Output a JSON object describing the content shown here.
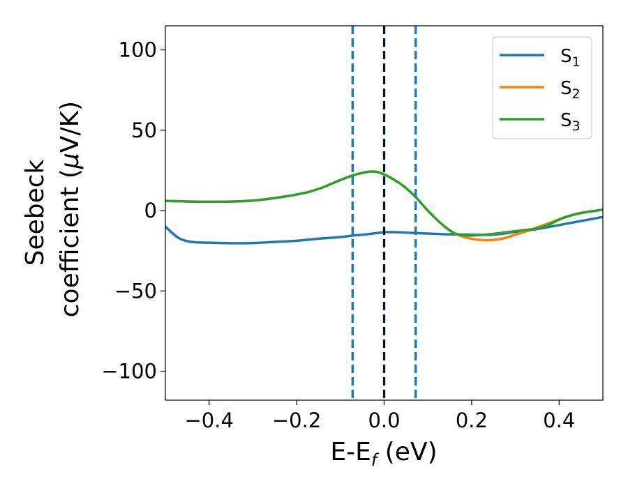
{
  "chart_data": {
    "type": "line",
    "title": "",
    "xlabel": {
      "main": "E-E",
      "sub": "f",
      "unit": " (eV)"
    },
    "ylabel": {
      "line1": "Seebeck",
      "line2": "coefficient  (",
      "mu": "μ",
      "unit": "V/K)"
    },
    "xlim": [
      -0.5,
      0.5
    ],
    "ylim": [
      -118,
      115
    ],
    "xticks": [
      -0.4,
      -0.2,
      0.0,
      0.2,
      0.4
    ],
    "xtick_labels": [
      "−0.4",
      "−0.2",
      "0.0",
      "0.2",
      "0.4"
    ],
    "yticks": [
      100,
      50,
      0,
      -50,
      -100
    ],
    "ytick_labels": [
      "100",
      "50",
      "0",
      "−50",
      "−100"
    ],
    "legend_position": "top-right",
    "series": [
      {
        "name": "S",
        "sub": "1",
        "color": "#1f77b4",
        "x": [
          -0.5,
          -0.47,
          -0.44,
          -0.4,
          -0.35,
          -0.3,
          -0.25,
          -0.2,
          -0.15,
          -0.1,
          -0.07,
          -0.04,
          0.0,
          0.03,
          0.07,
          0.1,
          0.15,
          0.2,
          0.25,
          0.3,
          0.35,
          0.4,
          0.45,
          0.5
        ],
        "y": [
          -10,
          -17,
          -19.5,
          -20,
          -20.3,
          -20.2,
          -19.5,
          -18.8,
          -17.5,
          -16.5,
          -15.5,
          -14.8,
          -13.5,
          -13.5,
          -14,
          -14.3,
          -14.8,
          -15,
          -15,
          -13.3,
          -11.5,
          -9,
          -6.5,
          -4
        ]
      },
      {
        "name": "S",
        "sub": "2",
        "color": "#ff7f0e",
        "x": [
          -0.5,
          -0.4,
          -0.3,
          -0.2,
          -0.15,
          -0.1,
          -0.07,
          -0.04,
          -0.02,
          0.0,
          0.03,
          0.05,
          0.07,
          0.1,
          0.13,
          0.16,
          0.19,
          0.22,
          0.24,
          0.27,
          0.3,
          0.33,
          0.35,
          0.38,
          0.41,
          0.45,
          0.5
        ],
        "y": [
          6,
          5.5,
          6.2,
          10,
          13.5,
          19,
          22,
          24,
          24.2,
          22.5,
          18,
          14,
          9,
          0,
          -8,
          -14,
          -17,
          -18.3,
          -18.5,
          -17.5,
          -15,
          -12.5,
          -10.5,
          -7.5,
          -4.5,
          -1.5,
          0.5
        ]
      },
      {
        "name": "S",
        "sub": "3",
        "color": "#2ca02c",
        "x": [
          -0.5,
          -0.4,
          -0.3,
          -0.2,
          -0.15,
          -0.1,
          -0.07,
          -0.04,
          -0.02,
          0.0,
          0.03,
          0.05,
          0.07,
          0.1,
          0.13,
          0.16,
          0.19,
          0.22,
          0.25,
          0.28,
          0.31,
          0.34,
          0.37,
          0.41,
          0.45,
          0.5
        ],
        "y": [
          6,
          5.5,
          6.2,
          10,
          13.5,
          19,
          22,
          24,
          24.2,
          22.5,
          18,
          14,
          9,
          0,
          -8,
          -14,
          -15.5,
          -15.2,
          -14.5,
          -13.5,
          -12.5,
          -11.5,
          -9.5,
          -4.5,
          -1.5,
          0.5
        ]
      }
    ],
    "vlines": [
      {
        "x": -0.072,
        "color": "#1f77b4",
        "style": "dashed"
      },
      {
        "x": 0.0,
        "color": "#1f77b4",
        "style": "dashed"
      },
      {
        "x": 0.0,
        "color": "#000000",
        "style": "dashed"
      },
      {
        "x": 0.072,
        "color": "#1f77b4",
        "style": "dashed"
      }
    ]
  }
}
